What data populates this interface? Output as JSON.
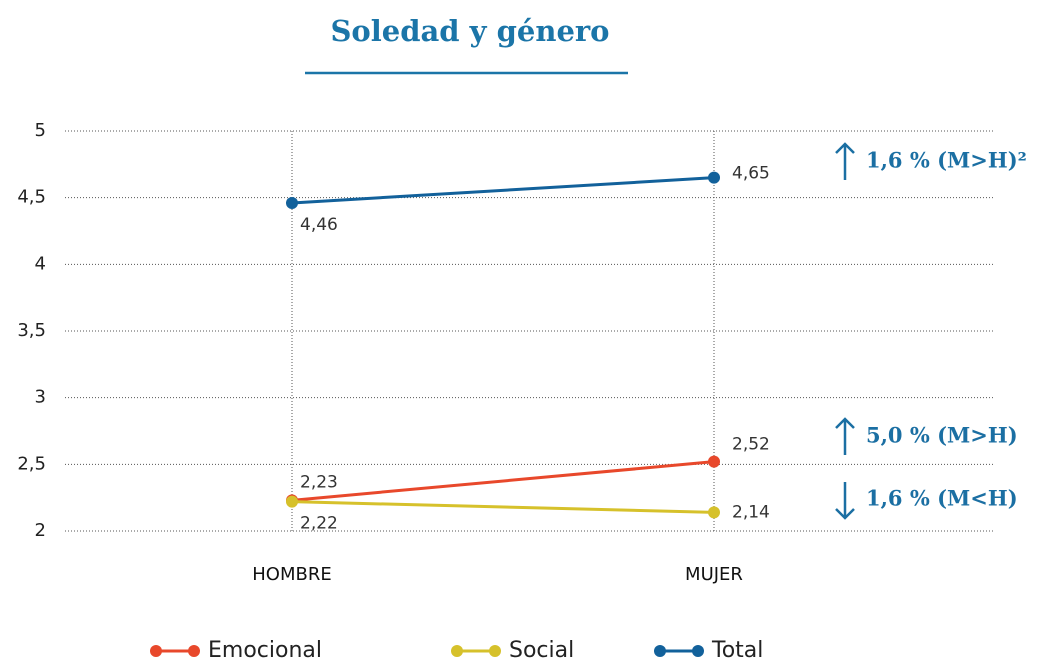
{
  "chart_data": {
    "type": "line",
    "title": "Soledad y género",
    "categories": [
      "HOMBRE",
      "MUJER"
    ],
    "series": [
      {
        "name": "Emocional",
        "color": "#e8482b",
        "values": [
          2.23,
          2.52
        ],
        "value_labels": [
          "2,23",
          "2,52"
        ]
      },
      {
        "name": "Social",
        "color": "#d6c12b",
        "values": [
          2.22,
          2.14
        ],
        "value_labels": [
          "2,22",
          "2,14"
        ]
      },
      {
        "name": "Total",
        "color": "#12619b",
        "values": [
          4.46,
          4.65
        ],
        "value_labels": [
          "4,46",
          "4,65"
        ]
      }
    ],
    "ylim": [
      2,
      5
    ],
    "yticks": [
      2,
      {
        "value": 2.5,
        "label": "2,5"
      },
      3,
      {
        "value": 3.5,
        "label": "3,5"
      },
      4,
      {
        "value": 4.5,
        "label": "4,5"
      },
      5
    ],
    "grid": true,
    "legend": "bottom",
    "annotations": [
      {
        "text": "1,6 % (M>H)²",
        "direction": "up",
        "series": 2
      },
      {
        "text": "5,0 % (M>H)",
        "direction": "up",
        "series": 0
      },
      {
        "text": "1,6 % (M<H)",
        "direction": "down",
        "series": 1
      }
    ]
  }
}
